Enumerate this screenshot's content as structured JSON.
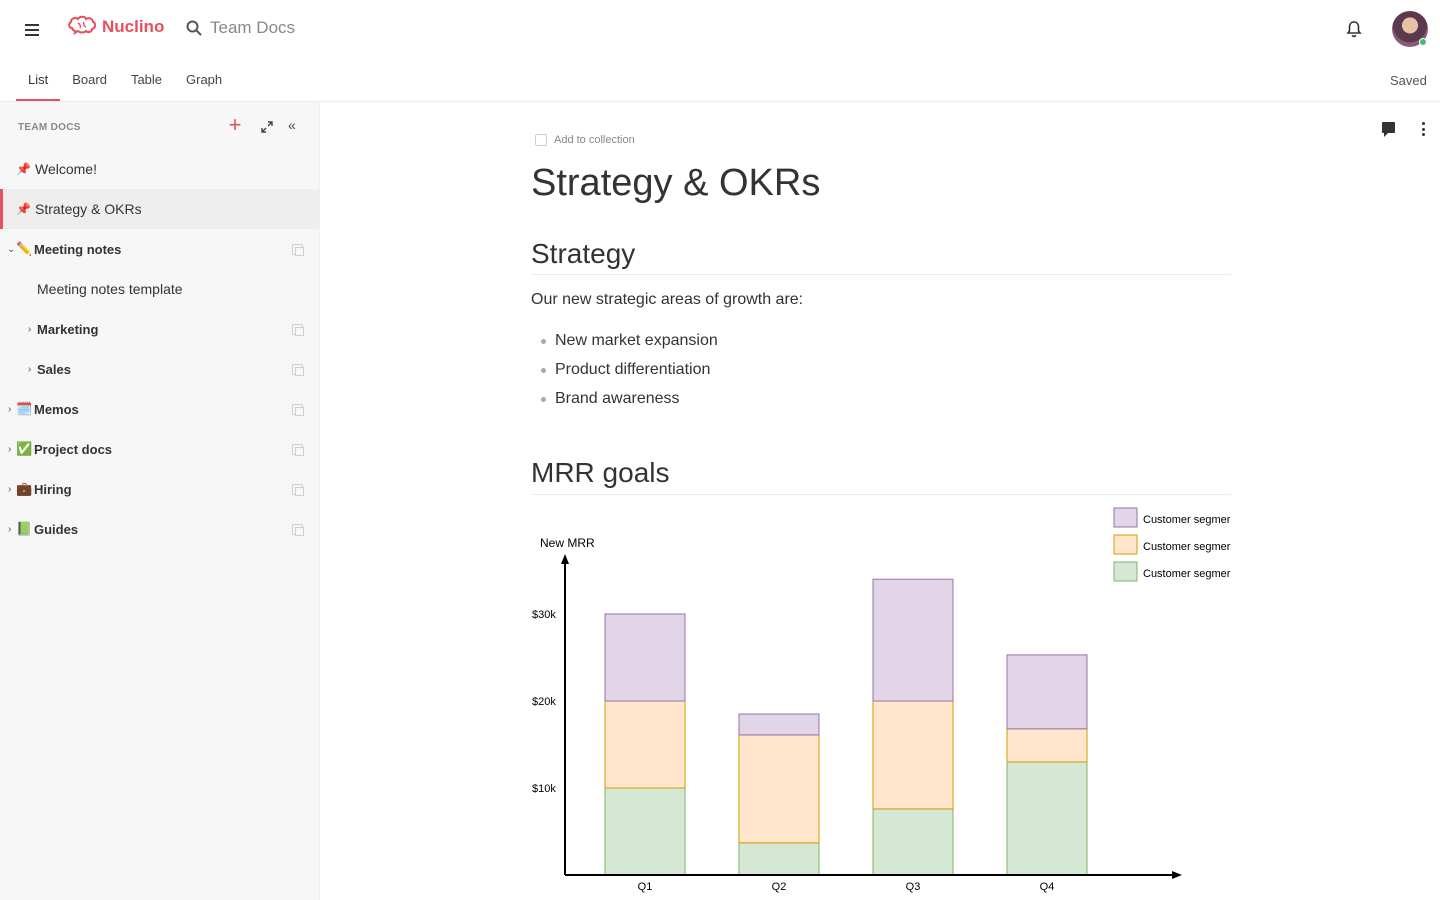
{
  "app": {
    "brand": "Nuclino",
    "search_placeholder": "Team Docs",
    "save_status": "Saved"
  },
  "view_tabs": [
    {
      "label": "List",
      "active": true
    },
    {
      "label": "Board",
      "active": false
    },
    {
      "label": "Table",
      "active": false
    },
    {
      "label": "Graph",
      "active": false
    }
  ],
  "sidebar": {
    "header": "TEAM DOCS",
    "items": [
      {
        "label": "Welcome!",
        "icon": "pin-icon",
        "active": false
      },
      {
        "label": "Strategy & OKRs",
        "icon": "pin-icon",
        "active": true
      },
      {
        "label": "Meeting notes",
        "emoji": "✏️",
        "expanded": true
      },
      {
        "label": "Meeting notes template"
      },
      {
        "label": "Marketing",
        "collapsed": true
      },
      {
        "label": "Sales",
        "collapsed": true
      },
      {
        "label": "Memos",
        "emoji": "🗓️",
        "collapsed": true
      },
      {
        "label": "Project docs",
        "emoji": "✅",
        "collapsed": true
      },
      {
        "label": "Hiring",
        "emoji": "💼",
        "collapsed": true
      },
      {
        "label": "Guides",
        "emoji": "📗",
        "collapsed": true
      }
    ]
  },
  "document": {
    "add_to_collection": "Add to collection",
    "title": "Strategy & OKRs",
    "section1_heading": "Strategy",
    "section1_text": "Our new strategic areas of growth are:",
    "bullets": [
      "New market expansion",
      "Product differentiation",
      "Brand awareness"
    ],
    "section2_heading": "MRR goals"
  },
  "chart_data": {
    "type": "bar",
    "stacked": true,
    "ylabel": "New MRR",
    "categories": [
      "Q1",
      "Q2",
      "Q3",
      "Q4"
    ],
    "y_ticks": [
      "$10k",
      "$20k",
      "$30k"
    ],
    "ylim": [
      0,
      37000
    ],
    "series": [
      {
        "name": "Customer segmer",
        "color": "#d5e8d4",
        "stroke": "#82b366",
        "values": [
          10000,
          3700,
          7600,
          13000
        ]
      },
      {
        "name": "Customer segmer",
        "color": "#ffe6cc",
        "stroke": "#d79b00",
        "values": [
          10000,
          12400,
          12400,
          3800
        ]
      },
      {
        "name": "Customer segmer",
        "color": "#e1d5e7",
        "stroke": "#9673a6",
        "values": [
          10000,
          2400,
          14000,
          8500
        ]
      }
    ],
    "legend_position": "top-right"
  },
  "colors": {
    "accent": "#e8505b"
  }
}
